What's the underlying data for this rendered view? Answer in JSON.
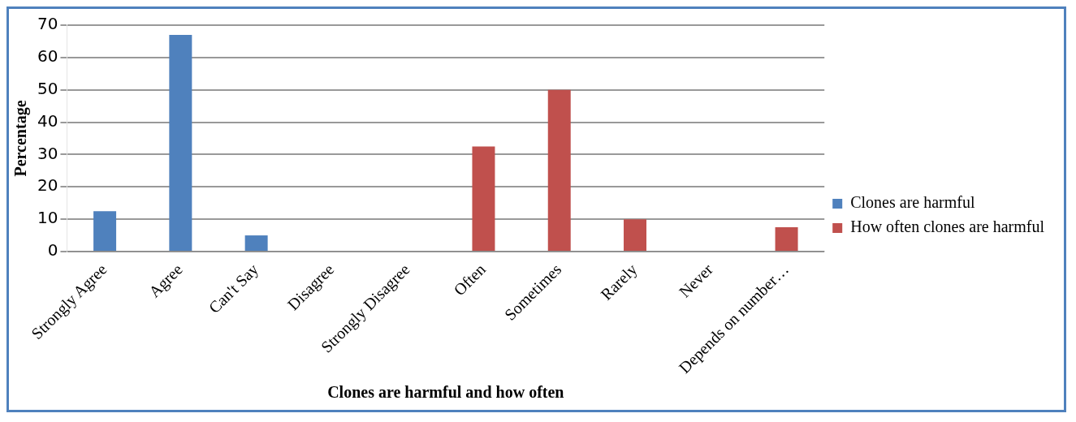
{
  "chart_data": {
    "type": "bar",
    "xlabel": "Clones are harmful and how often",
    "ylabel": "Percentage",
    "categories": [
      "Strongly Agree",
      "Agree",
      "Can't Say",
      "Disagree",
      "Strongly Disagree",
      "Often",
      "Sometimes",
      "Rarely",
      "Never",
      "Depends on number…"
    ],
    "series": [
      {
        "name": "Clones are harmful",
        "color": "#4f81bd",
        "values": [
          12.5,
          67,
          5,
          0,
          0,
          null,
          null,
          null,
          null,
          null
        ]
      },
      {
        "name": "How often clones are harmful",
        "color": "#c0504d",
        "values": [
          null,
          null,
          null,
          null,
          null,
          32.5,
          50,
          10,
          0,
          7.5
        ]
      }
    ],
    "ylim": [
      0,
      70
    ],
    "yticks": [
      0,
      10,
      20,
      30,
      40,
      50,
      60,
      70
    ],
    "grid": "y",
    "legend": "right"
  }
}
